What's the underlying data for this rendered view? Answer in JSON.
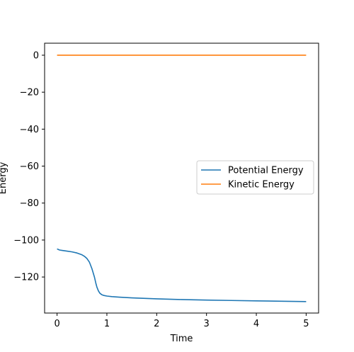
{
  "chart_data": {
    "type": "line",
    "title": "",
    "xlabel": "Time",
    "ylabel": "Energy",
    "xlim": [
      -0.25,
      5.25
    ],
    "ylim": [
      -139.5,
      6.5
    ],
    "xticks": [
      0,
      1,
      2,
      3,
      4,
      5
    ],
    "yticks": [
      0,
      -20,
      -40,
      -60,
      -80,
      -100,
      -120
    ],
    "grid": false,
    "legend_position": "center-right",
    "series": [
      {
        "name": "Potential Energy",
        "color": "#1f77b4",
        "x": [
          0,
          0.05,
          0.1,
          0.2,
          0.3,
          0.4,
          0.5,
          0.55,
          0.6,
          0.65,
          0.7,
          0.75,
          0.78,
          0.8,
          0.83,
          0.86,
          0.9,
          0.93,
          0.96,
          1.0,
          1.1,
          1.25,
          1.5,
          2.0,
          2.5,
          3.0,
          3.5,
          4.0,
          4.5,
          5.0
        ],
        "y": [
          -104.8,
          -105.4,
          -105.6,
          -106.0,
          -106.4,
          -107.0,
          -108.0,
          -108.8,
          -110.0,
          -112.0,
          -115.5,
          -120.0,
          -123.5,
          -125.5,
          -127.5,
          -128.8,
          -129.6,
          -129.9,
          -130.1,
          -130.3,
          -130.6,
          -130.9,
          -131.3,
          -131.8,
          -132.2,
          -132.5,
          -132.7,
          -132.9,
          -133.1,
          -133.3
        ]
      },
      {
        "name": "Kinetic Energy",
        "color": "#ff7f0e",
        "x": [
          0,
          5
        ],
        "y": [
          0,
          0
        ]
      }
    ]
  }
}
